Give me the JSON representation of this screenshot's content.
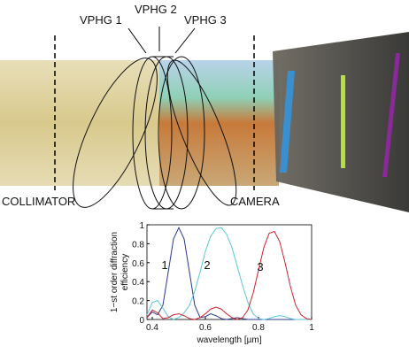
{
  "labels": {
    "vphg": [
      "VPHG 1",
      "VPHG 2",
      "VPHG 3"
    ],
    "collimator": "COLLIMATOR",
    "camera": "CAMERA"
  },
  "chart_data": {
    "type": "line",
    "ylabel": [
      "1−st order diffraction",
      "efficiency"
    ],
    "xlabel": "wavelength  [µm]",
    "xlim": [
      0.38,
      1
    ],
    "xticks": [
      0.4,
      0.6,
      0.8,
      1
    ],
    "ylim": [
      0,
      1
    ],
    "yticks": [
      0,
      0.2,
      0.4,
      0.6,
      0.8,
      1
    ],
    "x": [
      0.38,
      0.4,
      0.42,
      0.44,
      0.46,
      0.48,
      0.5,
      0.52,
      0.54,
      0.56,
      0.58,
      0.6,
      0.62,
      0.64,
      0.66,
      0.68,
      0.7,
      0.72,
      0.74,
      0.76,
      0.78,
      0.8,
      0.82,
      0.84,
      0.86,
      0.88,
      0.9,
      0.92,
      0.94,
      0.96,
      0.98,
      1.0
    ],
    "series": [
      {
        "name": "1",
        "color": "#2b3990",
        "values": [
          0.02,
          0.08,
          0.05,
          0.15,
          0.5,
          0.85,
          0.97,
          0.85,
          0.5,
          0.15,
          0.02,
          0.03,
          0.06,
          0.04,
          0.01,
          0,
          0.01,
          0.02,
          0.01,
          0,
          0,
          0,
          0,
          0,
          0,
          0,
          0,
          0,
          0,
          0,
          0,
          0
        ]
      },
      {
        "name": "2",
        "color": "#5cc6d6",
        "values": [
          0.05,
          0.18,
          0.2,
          0.12,
          0.03,
          0,
          0.02,
          0.07,
          0.15,
          0.3,
          0.5,
          0.72,
          0.88,
          0.96,
          0.97,
          0.9,
          0.76,
          0.56,
          0.36,
          0.18,
          0.06,
          0.01,
          0,
          0.01,
          0.03,
          0.04,
          0.03,
          0.01,
          0,
          0,
          0,
          0
        ]
      },
      {
        "name": "3",
        "color": "#d2202e",
        "values": [
          0.02,
          0.1,
          0.07,
          0.01,
          0.02,
          0.05,
          0.06,
          0.04,
          0.01,
          0,
          0.02,
          0.06,
          0.11,
          0.13,
          0.11,
          0.06,
          0.02,
          0,
          0.02,
          0.1,
          0.28,
          0.52,
          0.76,
          0.91,
          0.93,
          0.82,
          0.6,
          0.35,
          0.15,
          0.05,
          0.01,
          0
        ]
      }
    ]
  }
}
